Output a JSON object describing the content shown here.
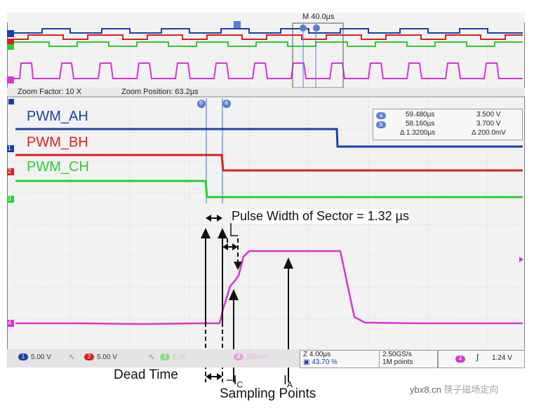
{
  "overview": {
    "marker_label": "M 40.0µs",
    "zoom_factor": "Zoom Factor: 10 X",
    "zoom_position": "Zoom Position: 63.2µs"
  },
  "zoom": {
    "labels": {
      "ah": "PWM_AH",
      "bh": "PWM_BH",
      "ch": "PWM_CH"
    },
    "cursor_readout": {
      "a_time": "59.480µs",
      "a_value": "3.500 V",
      "b_time": "58.160µs",
      "b_value": "3.700 V",
      "delta_time": "Δ 1.3200µs",
      "delta_value": "Δ 200.0mV"
    },
    "channel_markers": [
      "1",
      "2",
      "3",
      "4"
    ],
    "cursor_a": "a",
    "cursor_b": "b"
  },
  "status_bar": {
    "ch1": "5.00 V",
    "ch2": "5.00 V",
    "ch3": "5.00",
    "ch4": "500mV",
    "timebase": "Z 4.00µs",
    "position": "43.70 %",
    "sample_rate": "2.50GS/s",
    "record_length": "1M points",
    "trigger_level": "1.24 V"
  },
  "annotations": {
    "pulse_width": "Pulse Width of Sector = 1.32 µs",
    "dead_time": "Dead Time",
    "neg_ic_prefix": "−I",
    "neg_ic_sub": "C",
    "ia_prefix": "I",
    "ia_sub": "A",
    "sampling_points": "Sampling Points"
  },
  "watermark": "ybx8.cn",
  "colors": {
    "ch1": "#1a3fa8",
    "ch2": "#d92020",
    "ch3": "#2bcf2b",
    "ch4": "#d634d6",
    "cursor": "#5a7bd8"
  }
}
